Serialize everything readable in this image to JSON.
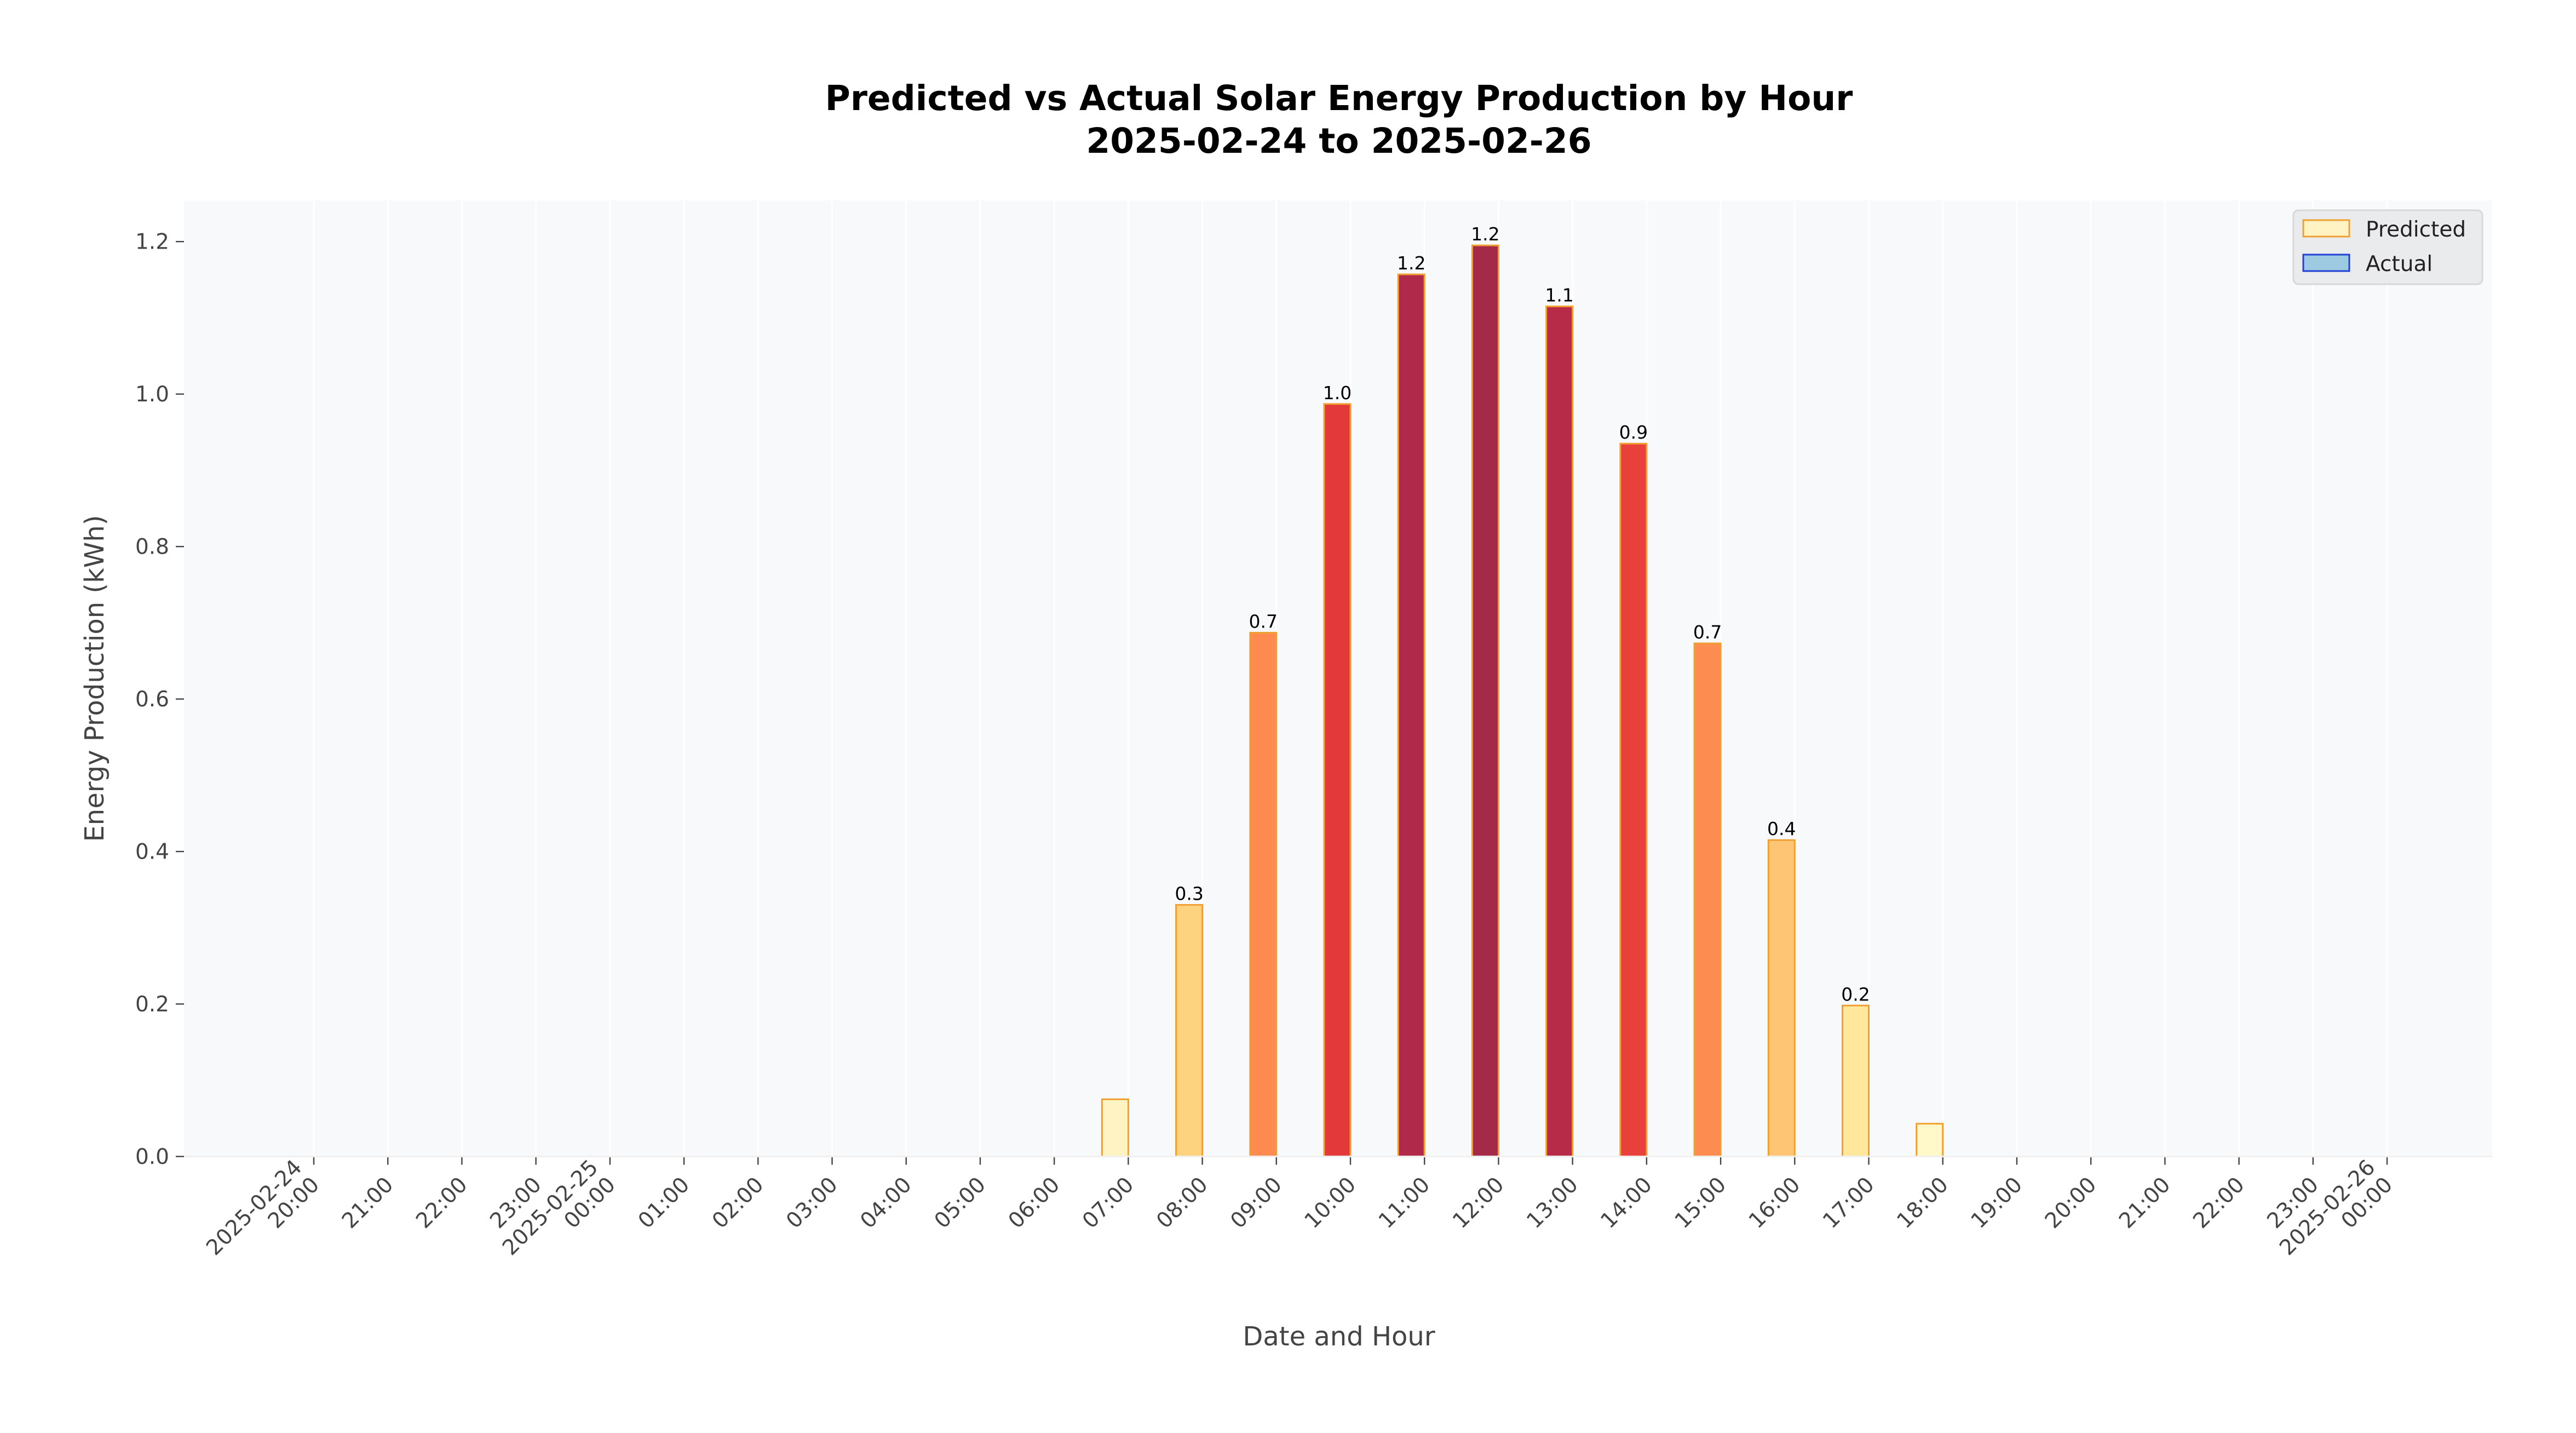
{
  "chart_data": {
    "type": "bar",
    "title": "Predicted vs Actual Solar Energy Production by Hour",
    "subtitle": "2025-02-24 to 2025-02-26",
    "x_label": "Date and Hour",
    "y_label": "Energy Production (kWh)",
    "categories": [
      "2025-02-24\n20:00",
      "21:00",
      "22:00",
      "23:00",
      "2025-02-25\n00:00",
      "01:00",
      "02:00",
      "03:00",
      "04:00",
      "05:00",
      "06:00",
      "07:00",
      "08:00",
      "09:00",
      "10:00",
      "11:00",
      "12:00",
      "13:00",
      "14:00",
      "15:00",
      "16:00",
      "17:00",
      "18:00",
      "19:00",
      "20:00",
      "21:00",
      "22:00",
      "23:00",
      "2025-02-26\n00:00"
    ],
    "series": [
      {
        "name": "Predicted",
        "color": "#fff3c4",
        "edge_color": "#f0a030",
        "values": [
          0,
          0,
          0,
          0,
          0,
          0,
          0,
          0,
          0,
          0,
          0,
          0.075,
          0.33,
          0.687,
          0.987,
          1.157,
          1.195,
          1.115,
          0.935,
          0.673,
          0.415,
          0.198,
          0.043,
          0,
          0,
          0,
          0,
          0,
          0
        ],
        "value_labels": [
          null,
          null,
          null,
          null,
          null,
          null,
          null,
          null,
          null,
          null,
          null,
          null,
          "0.3",
          "0.7",
          "1.0",
          "1.2",
          "1.2",
          "1.1",
          "0.9",
          "0.7",
          "0.4",
          "0.2",
          null,
          null,
          null,
          null,
          null,
          null,
          null
        ],
        "colors": [
          "#ffffcc",
          "#ffffcc",
          "#ffffcc",
          "#ffffcc",
          "#ffffcc",
          "#ffffcc",
          "#ffffcc",
          "#ffffcc",
          "#ffffcc",
          "#ffffcc",
          "#ffffcc",
          "#fff3c4",
          "#fed37f",
          "#fd8a4f",
          "#e3393a",
          "#b0294a",
          "#a52a4a",
          "#b82b48",
          "#e8403b",
          "#fd8c51",
          "#fec674",
          "#ffe79c",
          "#fff8c8",
          "#ffffcc",
          "#ffffcc",
          "#ffffcc",
          "#ffffcc",
          "#ffffcc",
          "#ffffcc"
        ]
      },
      {
        "name": "Actual",
        "color": "#9ecae1",
        "edge_color": "#1f3fd8",
        "values": [
          null,
          null,
          null,
          null,
          null,
          null,
          null,
          null,
          null,
          null,
          null,
          null,
          null,
          null,
          null,
          null,
          null,
          null,
          null,
          null,
          null,
          null,
          null,
          null,
          null,
          null,
          null,
          null,
          null
        ]
      }
    ],
    "ylim": [
      0,
      1.254
    ],
    "yticks": [
      {
        "value": 0,
        "label": "0.0"
      },
      0.2,
      0.4,
      0.6,
      0.8,
      {
        "value": 1.0,
        "label": "1.0"
      },
      1.2
    ],
    "grid": true,
    "legend": "upper right"
  }
}
